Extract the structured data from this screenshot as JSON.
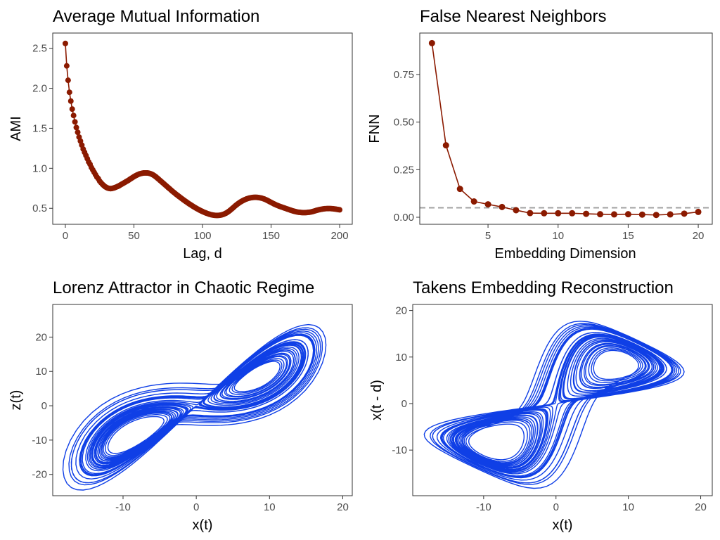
{
  "colors": {
    "points": "#8B1A00",
    "trajectory": "#0F3FE6",
    "reference_line": "#A0A0A0"
  },
  "chart_data": [
    {
      "type": "scatter",
      "title": "Average Mutual Information",
      "xlabel": "Lag, d",
      "ylabel": "AMI",
      "xlim": [
        -9.2,
        209.2
      ],
      "ylim": [
        0.3,
        2.69
      ],
      "xticks": [
        0,
        50,
        100,
        150,
        200
      ],
      "xtick_labels": [
        "0",
        "50",
        "100",
        "150",
        "200"
      ],
      "yticks": [
        0.5,
        1.0,
        1.5,
        2.0,
        2.5
      ],
      "ytick_labels": [
        "0.5",
        "1.0",
        "1.5",
        "2.0",
        "2.5"
      ],
      "grid": false,
      "connected": true,
      "x": [
        0,
        1,
        2,
        3,
        4,
        5,
        6,
        7,
        8,
        9,
        10,
        11,
        12,
        13,
        14,
        15,
        16,
        17,
        18,
        19,
        20,
        21,
        22,
        23,
        24,
        25,
        26,
        27,
        28,
        29,
        30,
        31,
        32,
        33,
        34,
        35,
        36,
        37,
        38,
        39,
        40,
        41,
        42,
        43,
        44,
        45,
        46,
        47,
        48,
        49,
        50,
        51,
        52,
        53,
        54,
        55,
        56,
        57,
        58,
        59,
        60,
        61,
        62,
        63,
        64,
        65,
        66,
        67,
        68,
        69,
        70,
        71,
        72,
        73,
        74,
        75,
        76,
        77,
        78,
        79,
        80,
        81,
        82,
        83,
        84,
        85,
        86,
        87,
        88,
        89,
        90,
        91,
        92,
        93,
        94,
        95,
        96,
        97,
        98,
        99,
        100,
        101,
        102,
        103,
        104,
        105,
        106,
        107,
        108,
        109,
        110,
        111,
        112,
        113,
        114,
        115,
        116,
        117,
        118,
        119,
        120,
        121,
        122,
        123,
        124,
        125,
        126,
        127,
        128,
        129,
        130,
        131,
        132,
        133,
        134,
        135,
        136,
        137,
        138,
        139,
        140,
        141,
        142,
        143,
        144,
        145,
        146,
        147,
        148,
        149,
        150,
        151,
        152,
        153,
        154,
        155,
        156,
        157,
        158,
        159,
        160,
        161,
        162,
        163,
        164,
        165,
        166,
        167,
        168,
        169,
        170,
        171,
        172,
        173,
        174,
        175,
        176,
        177,
        178,
        179,
        180,
        181,
        182,
        183,
        184,
        185,
        186,
        187,
        188,
        189,
        190,
        191,
        192,
        193,
        194,
        195,
        196,
        197,
        198,
        199,
        200
      ],
      "y": [
        2.56,
        2.28,
        2.1,
        1.95,
        1.84,
        1.74,
        1.66,
        1.58,
        1.51,
        1.45,
        1.39,
        1.34,
        1.29,
        1.24,
        1.2,
        1.16,
        1.12,
        1.08,
        1.05,
        1.01,
        0.98,
        0.95,
        0.92,
        0.89,
        0.87,
        0.84,
        0.82,
        0.8,
        0.785,
        0.77,
        0.76,
        0.752,
        0.748,
        0.746,
        0.748,
        0.752,
        0.758,
        0.765,
        0.772,
        0.78,
        0.79,
        0.8,
        0.81,
        0.82,
        0.83,
        0.84,
        0.85,
        0.862,
        0.873,
        0.884,
        0.895,
        0.905,
        0.914,
        0.922,
        0.929,
        0.934,
        0.938,
        0.941,
        0.942,
        0.942,
        0.941,
        0.938,
        0.933,
        0.926,
        0.917,
        0.906,
        0.893,
        0.879,
        0.864,
        0.849,
        0.834,
        0.819,
        0.804,
        0.789,
        0.774,
        0.759,
        0.744,
        0.729,
        0.714,
        0.7,
        0.686,
        0.672,
        0.659,
        0.646,
        0.633,
        0.62,
        0.607,
        0.595,
        0.583,
        0.571,
        0.559,
        0.548,
        0.537,
        0.526,
        0.515,
        0.505,
        0.495,
        0.486,
        0.477,
        0.468,
        0.46,
        0.452,
        0.445,
        0.438,
        0.432,
        0.426,
        0.421,
        0.417,
        0.414,
        0.412,
        0.411,
        0.411,
        0.412,
        0.414,
        0.418,
        0.423,
        0.43,
        0.438,
        0.448,
        0.46,
        0.473,
        0.487,
        0.502,
        0.517,
        0.532,
        0.546,
        0.559,
        0.571,
        0.582,
        0.592,
        0.601,
        0.609,
        0.616,
        0.622,
        0.627,
        0.631,
        0.634,
        0.636,
        0.637,
        0.637,
        0.636,
        0.634,
        0.631,
        0.627,
        0.622,
        0.616,
        0.609,
        0.601,
        0.592,
        0.583,
        0.574,
        0.565,
        0.556,
        0.548,
        0.54,
        0.533,
        0.526,
        0.52,
        0.514,
        0.508,
        0.502,
        0.496,
        0.49,
        0.484,
        0.478,
        0.472,
        0.467,
        0.462,
        0.458,
        0.454,
        0.451,
        0.449,
        0.447,
        0.446,
        0.446,
        0.446,
        0.447,
        0.449,
        0.451,
        0.454,
        0.458,
        0.463,
        0.468,
        0.473,
        0.478,
        0.482,
        0.486,
        0.489,
        0.492,
        0.494,
        0.496,
        0.497,
        0.497,
        0.497,
        0.496,
        0.494,
        0.492,
        0.49,
        0.487,
        0.484,
        0.481
      ]
    },
    {
      "type": "line",
      "title": "False Nearest Neighbors",
      "xlabel": "Embedding Dimension",
      "ylabel": "FNN",
      "xlim": [
        0.13,
        21.0
      ],
      "ylim": [
        -0.037,
        0.968
      ],
      "xticks": [
        5,
        10,
        15,
        20
      ],
      "xtick_labels": [
        "5",
        "10",
        "15",
        "20"
      ],
      "yticks": [
        0.0,
        0.25,
        0.5,
        0.75
      ],
      "ytick_labels": [
        "0.00",
        "0.25",
        "0.50",
        "0.75"
      ],
      "grid": false,
      "reference_line": 0.05,
      "x": [
        1,
        2,
        3,
        4,
        5,
        6,
        7,
        8,
        9,
        10,
        11,
        12,
        13,
        14,
        15,
        16,
        17,
        18,
        19,
        20
      ],
      "y": [
        0.915,
        0.378,
        0.149,
        0.083,
        0.068,
        0.054,
        0.037,
        0.022,
        0.021,
        0.021,
        0.021,
        0.018,
        0.016,
        0.015,
        0.016,
        0.014,
        0.012,
        0.015,
        0.019,
        0.028
      ]
    },
    {
      "type": "line",
      "title": "Lorenz Attractor in Chaotic Regime",
      "xlabel": "x(t)",
      "ylabel": "z(t)",
      "xlim": [
        -19.6,
        21.3
      ],
      "ylim": [
        -26.2,
        29.5
      ],
      "xticks": [
        -10,
        0,
        10,
        20
      ],
      "xtick_labels": [
        "-10",
        "0",
        "10",
        "20"
      ],
      "yticks": [
        -20,
        -10,
        0,
        10,
        20
      ],
      "ytick_labels": [
        "-20",
        "-10",
        "0",
        "10",
        "20"
      ],
      "grid": false
    },
    {
      "type": "line",
      "title": "Takens Embedding Reconstruction",
      "xlabel": "x(t)",
      "ylabel": "x(t - d)",
      "xlim": [
        -19.8,
        21.6
      ],
      "ylim": [
        -19.8,
        21.3
      ],
      "xticks": [
        -10,
        0,
        10,
        20
      ],
      "xtick_labels": [
        "-10",
        "0",
        "10",
        "20"
      ],
      "yticks": [
        -10,
        0,
        10,
        20
      ],
      "ytick_labels": [
        "-10",
        "0",
        "10",
        "20"
      ],
      "grid": false
    }
  ]
}
